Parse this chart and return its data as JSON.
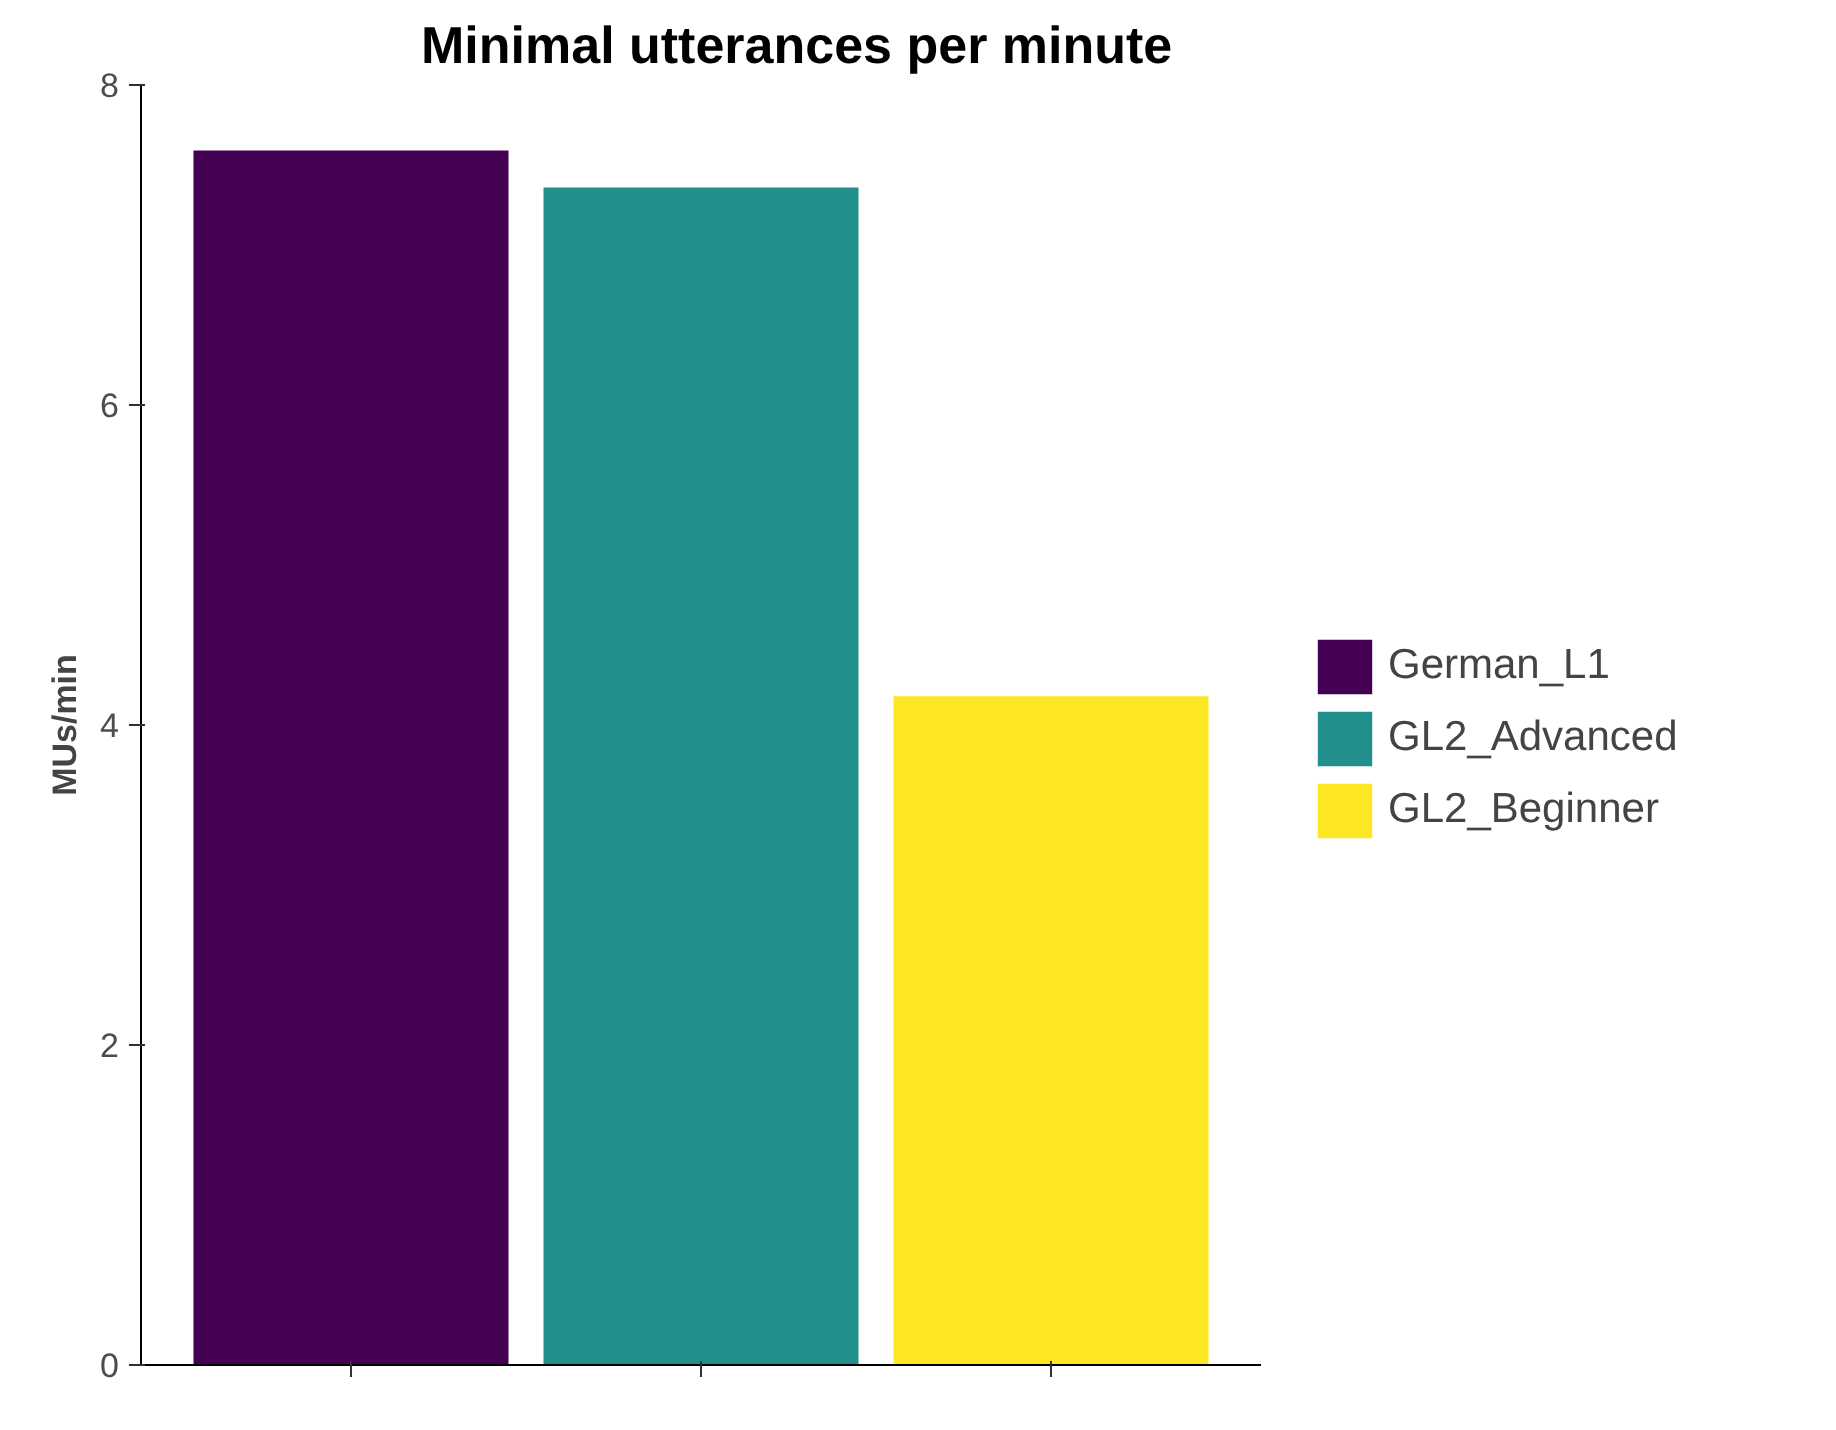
{
  "chart_data": {
    "type": "bar",
    "title": "Minimal utterances per minute",
    "ylabel": "MUs/min",
    "categories": [
      null,
      null,
      null
    ],
    "series": [
      {
        "name": "German_L1",
        "color": "#440154",
        "values": [
          7.59,
          null,
          null
        ]
      },
      {
        "name": "GL2_Advanced",
        "color": "#21908c",
        "values": [
          null,
          7.36,
          null
        ]
      },
      {
        "name": "GL2_Beginner",
        "color": "#fde725",
        "values": [
          null,
          null,
          4.18
        ]
      }
    ],
    "ylim": [
      0,
      8
    ],
    "yticks": [
      0,
      2,
      4,
      6,
      8
    ],
    "grid": false,
    "legend": "right",
    "tick_labels": "y"
  }
}
